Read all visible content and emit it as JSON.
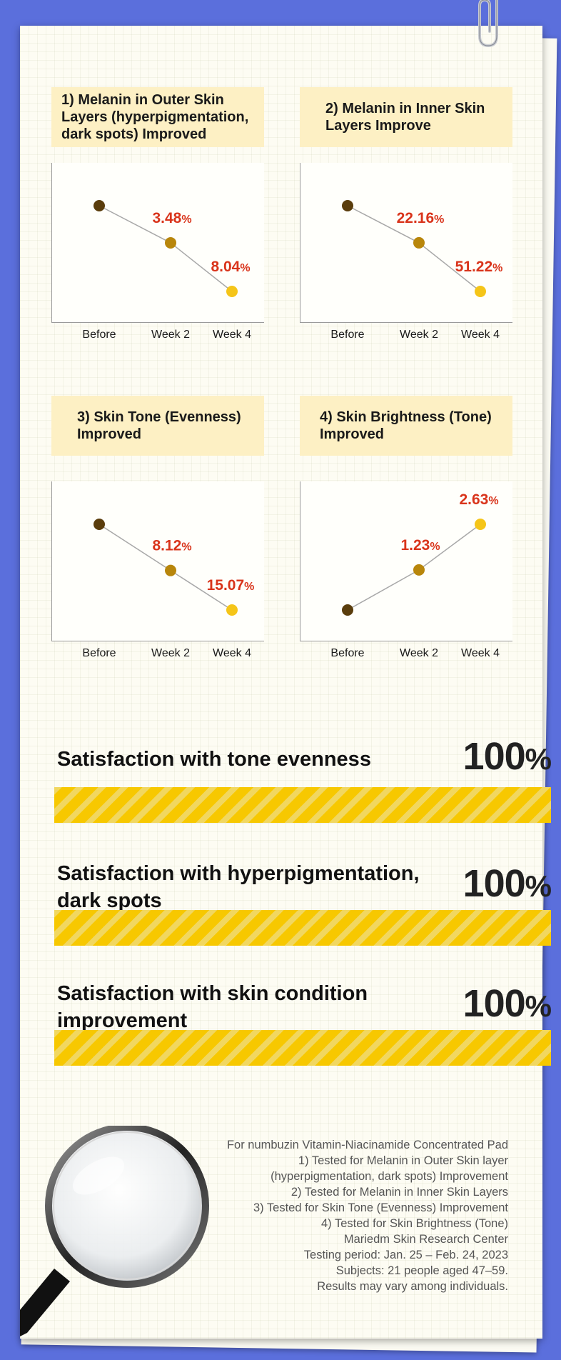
{
  "panels": [
    {
      "title": "1) Melanin in Outer Skin Layers (hyperpigmentation, dark spots) Improved",
      "chart_data": {
        "type": "line",
        "categories": [
          "Before",
          "Week 2",
          "Week 4"
        ],
        "relative_levels": [
          1.0,
          0.9652,
          0.9196
        ],
        "annotations": [
          {
            "at": "Week 2",
            "text": "3.48",
            "unit": "%"
          },
          {
            "at": "Week 4",
            "text": "8.04",
            "unit": "%"
          }
        ]
      }
    },
    {
      "title": "2) Melanin in Inner Skin Layers Improve",
      "chart_data": {
        "type": "line",
        "categories": [
          "Before",
          "Week 2",
          "Week 4"
        ],
        "relative_levels": [
          1.0,
          0.7784,
          0.4878
        ],
        "annotations": [
          {
            "at": "Week 2",
            "text": "22.16",
            "unit": "%"
          },
          {
            "at": "Week 4",
            "text": "51.22",
            "unit": "%"
          }
        ]
      }
    },
    {
      "title": "3) Skin Tone (Evenness) Improved",
      "chart_data": {
        "type": "line",
        "categories": [
          "Before",
          "Week 2",
          "Week 4"
        ],
        "relative_levels": [
          1.0,
          0.9188,
          0.8493
        ],
        "annotations": [
          {
            "at": "Week 2",
            "text": "8.12",
            "unit": "%"
          },
          {
            "at": "Week 4",
            "text": "15.07",
            "unit": "%"
          }
        ]
      }
    },
    {
      "title": "4) Skin Brightness (Tone) Improved",
      "chart_data": {
        "type": "line",
        "categories": [
          "Before",
          "Week 2",
          "Week 4"
        ],
        "relative_levels": [
          1.0,
          1.0123,
          1.0263
        ],
        "annotations": [
          {
            "at": "Week 2",
            "text": "1.23",
            "unit": "%"
          },
          {
            "at": "Week 4",
            "text": "2.63",
            "unit": "%"
          }
        ]
      }
    }
  ],
  "satisfaction": [
    {
      "label": "Satisfaction with tone evenness",
      "value": "100",
      "unit": "%",
      "percent": 100
    },
    {
      "label": "Satisfaction with hyperpigmentation, dark spots",
      "value": "100",
      "unit": "%",
      "percent": 100
    },
    {
      "label": "Satisfaction with skin condition improvement",
      "value": "100",
      "unit": "%",
      "percent": 100
    }
  ],
  "notes": [
    "For numbuzin Vitamin-Niacinamide Concentrated Pad",
    "1) Tested for Melanin in Outer Skin layer",
    "(hyperpigmentation, dark spots) Improvement",
    "2) Tested for Melanin in Inner Skin Layers",
    "3) Tested for Skin Tone (Evenness) Improvement",
    "4) Tested for Skin Brightness (Tone)",
    "Mariedm Skin Research Center",
    "Testing period: Jan. 25 – Feb. 24, 2023",
    "Subjects: 21 people aged 47–59.",
    "Results may vary among individuals."
  ],
  "colors": {
    "background": "#5b6fdc",
    "title_box": "#fdf0c4",
    "point_before": "#5a3d0c",
    "point_week2": "#b8860b",
    "point_week4": "#f5c518",
    "annotation": "#d9341b",
    "bar": "#f7c800"
  }
}
